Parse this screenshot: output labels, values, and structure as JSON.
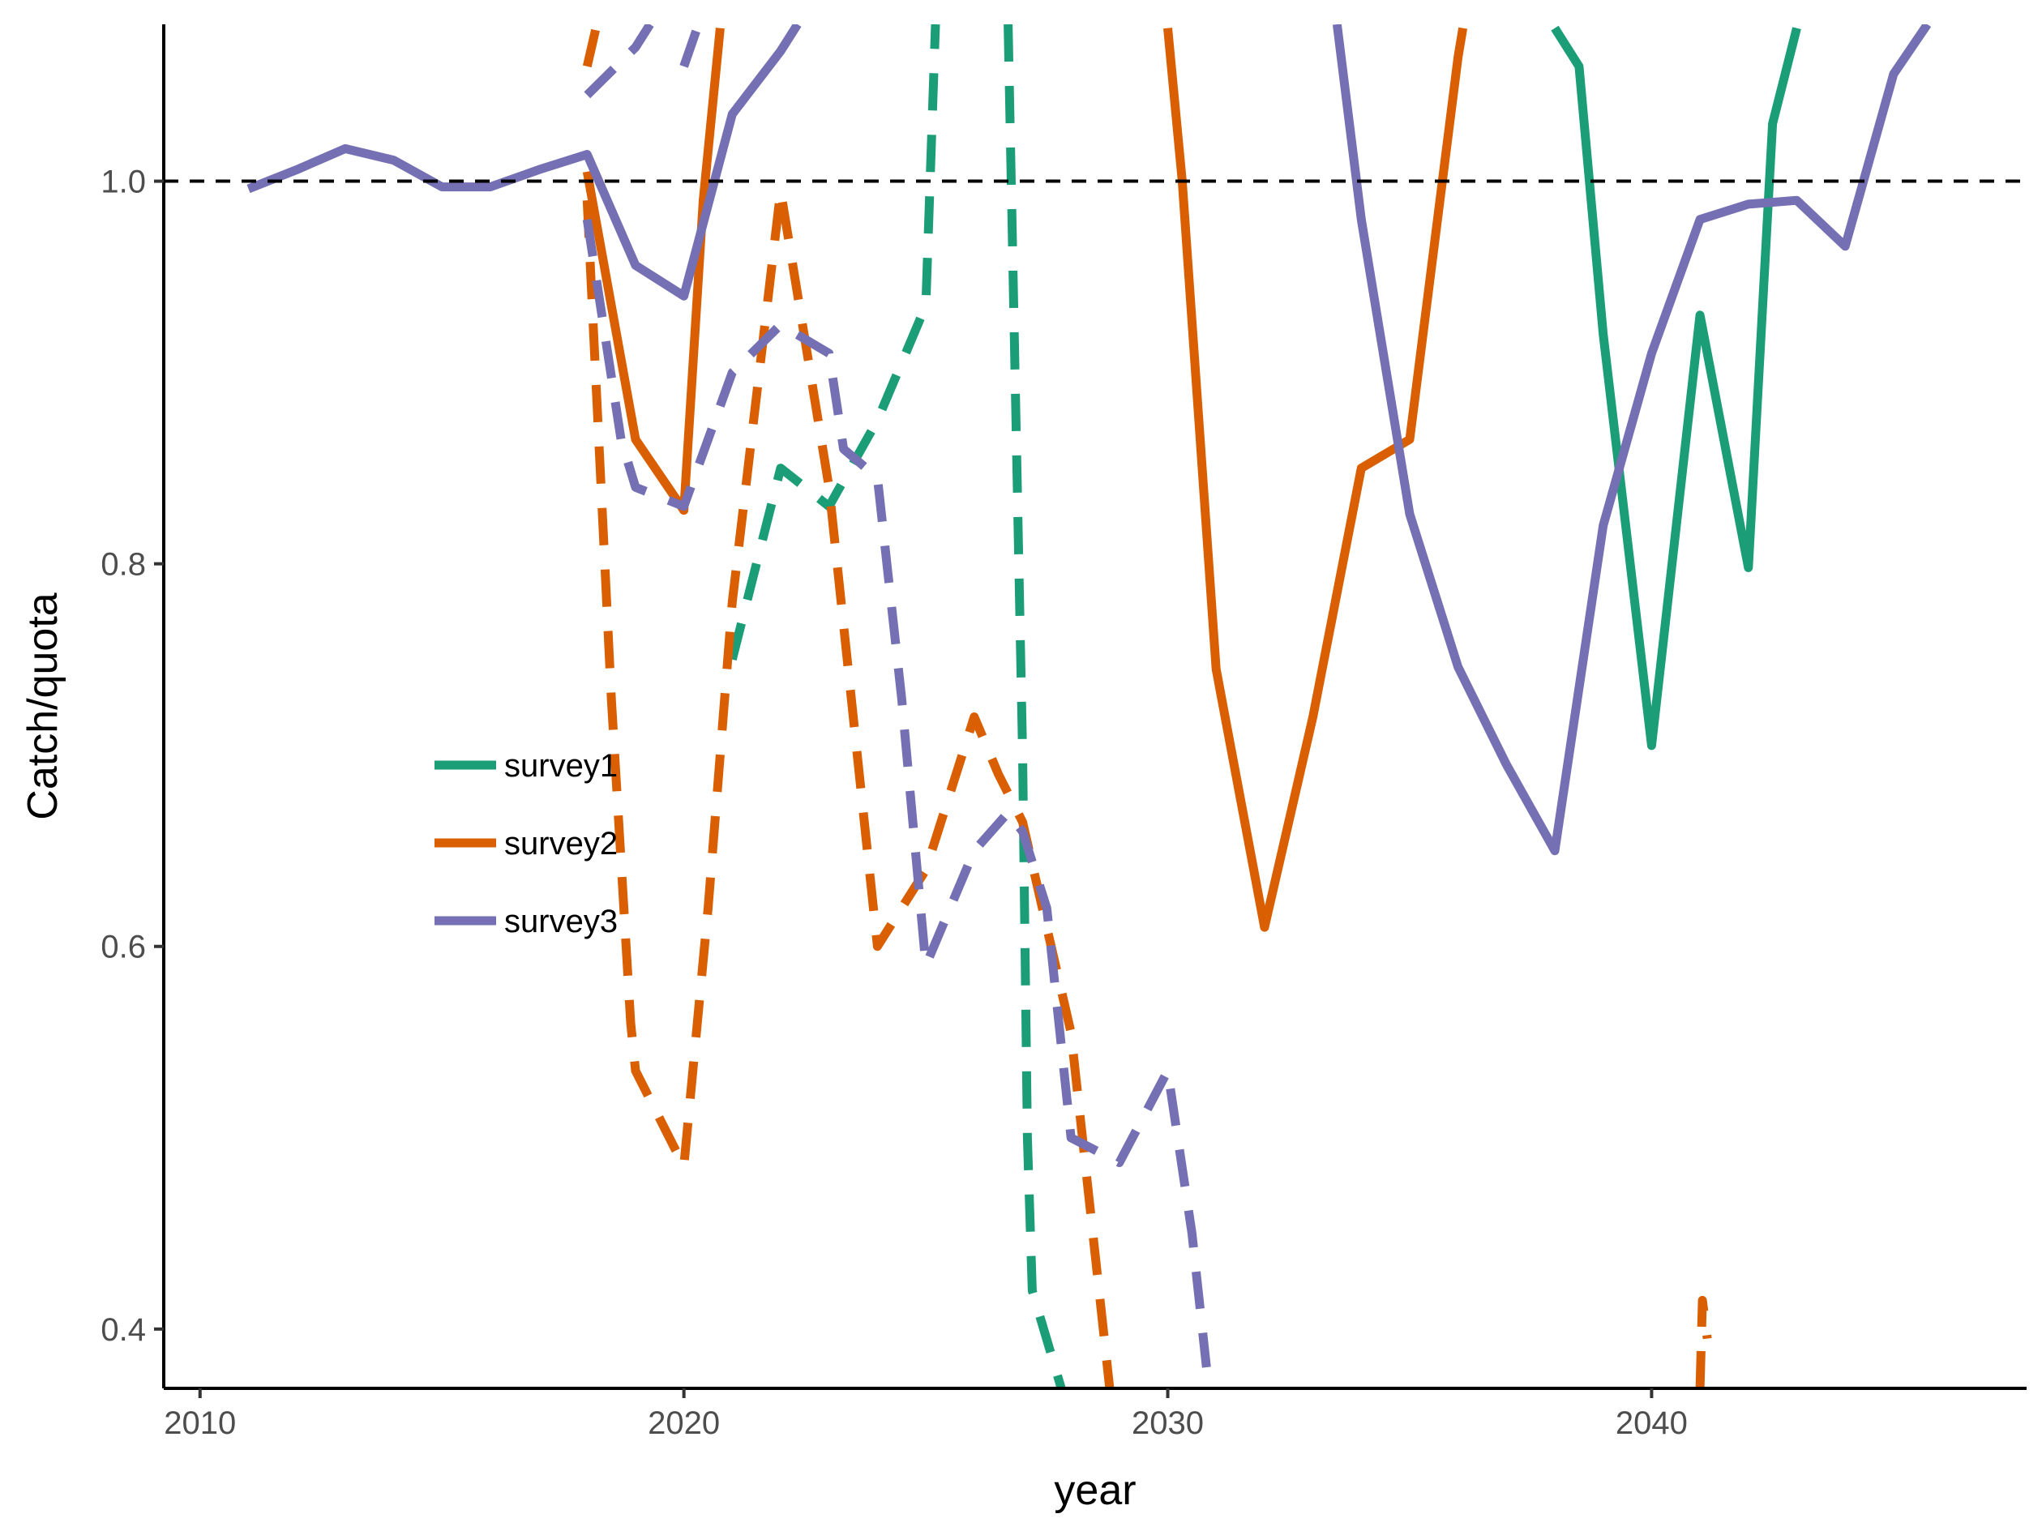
{
  "chart_data": {
    "type": "line",
    "title": "",
    "xlabel": "year",
    "ylabel": "Catch/quota",
    "xlim": [
      2009.25,
      2047.75
    ],
    "ylim": [
      0.369,
      1.082
    ],
    "x_ticks": [
      2010,
      2020,
      2030,
      2040
    ],
    "x_tick_labels": [
      "2010",
      "2020",
      "2030",
      "2040"
    ],
    "y_ticks": [
      0.4,
      0.6,
      0.8,
      1.0
    ],
    "y_tick_labels": [
      "0.4",
      "0.6",
      "0.8",
      "1.0"
    ],
    "reference_line": {
      "y": 1.0,
      "style": "dashed",
      "color": "#000000"
    },
    "grid": false,
    "legend_position": "left-middle",
    "legend": [
      {
        "name": "survey1",
        "color": "#1B9E77"
      },
      {
        "name": "survey2",
        "color": "#D95F02"
      },
      {
        "name": "survey3",
        "color": "#7570B3"
      }
    ],
    "series": [
      {
        "name": "survey1",
        "style": "solid",
        "color": "#1B9E77",
        "points": [
          [
            2038,
            1.08
          ],
          [
            2038.5,
            1.06
          ],
          [
            2039,
            0.92
          ],
          [
            2040,
            0.705
          ],
          [
            2041,
            0.93
          ],
          [
            2042,
            0.798
          ],
          [
            2042.5,
            1.03
          ],
          [
            2043,
            1.08
          ]
        ]
      },
      {
        "name": "survey2",
        "style": "solid",
        "color": "#D95F02",
        "points": [
          [
            2018,
            1.005
          ],
          [
            2019,
            0.865
          ],
          [
            2020,
            0.828
          ],
          [
            2020.4,
            0.99
          ],
          [
            2020.75,
            1.08
          ]
        ]
      },
      {
        "name": "survey2",
        "style": "solid",
        "color": "#D95F02",
        "points": [
          [
            2030,
            1.08
          ],
          [
            2030.3,
            1.0
          ],
          [
            2031,
            0.745
          ],
          [
            2032,
            0.61
          ],
          [
            2033,
            0.72
          ],
          [
            2034,
            0.85
          ],
          [
            2035,
            0.865
          ],
          [
            2036,
            1.065
          ],
          [
            2036.1,
            1.08
          ]
        ]
      },
      {
        "name": "survey3",
        "style": "solid",
        "color": "#7570B3",
        "points": [
          [
            2011,
            0.996
          ],
          [
            2012,
            1.006
          ],
          [
            2013,
            1.017
          ],
          [
            2014,
            1.011
          ],
          [
            2015,
            0.997
          ],
          [
            2016,
            0.997
          ],
          [
            2017,
            1.006
          ],
          [
            2018,
            1.014
          ],
          [
            2019,
            0.956
          ],
          [
            2020,
            0.94
          ],
          [
            2021,
            1.035
          ],
          [
            2022,
            1.068
          ],
          [
            2022.35,
            1.082
          ]
        ]
      },
      {
        "name": "survey3",
        "style": "solid",
        "color": "#7570B3",
        "points": [
          [
            2033.5,
            1.082
          ],
          [
            2034,
            0.98
          ],
          [
            2035,
            0.826
          ],
          [
            2036,
            0.746
          ],
          [
            2037,
            0.695
          ],
          [
            2038,
            0.65
          ],
          [
            2039,
            0.82
          ],
          [
            2040,
            0.91
          ],
          [
            2041,
            0.98
          ],
          [
            2042,
            0.988
          ],
          [
            2043,
            0.99
          ],
          [
            2044,
            0.966
          ],
          [
            2045,
            1.056
          ],
          [
            2045.7,
            1.082
          ]
        ]
      },
      {
        "name": "survey1",
        "style": "dashed",
        "color": "#1B9E77",
        "points": [
          [
            2021,
            0.75
          ],
          [
            2021.7,
            0.82
          ],
          [
            2022,
            0.85
          ],
          [
            2023,
            0.83
          ],
          [
            2024,
            0.875
          ],
          [
            2025,
            0.935
          ],
          [
            2025.2,
            1.082
          ]
        ]
      },
      {
        "name": "survey1",
        "style": "dashed",
        "color": "#1B9E77",
        "points": [
          [
            2026.7,
            1.082
          ],
          [
            2027,
            0.7
          ],
          [
            2027.1,
            0.5
          ],
          [
            2027.2,
            0.42
          ],
          [
            2027.8,
            0.369
          ]
        ]
      },
      {
        "name": "survey2",
        "style": "dashed",
        "color": "#D95F02",
        "points": [
          [
            2018,
            1.06
          ],
          [
            2018.2,
            1.082
          ]
        ]
      },
      {
        "name": "survey2",
        "style": "dashed",
        "color": "#D95F02",
        "points": [
          [
            2018,
            0.99
          ],
          [
            2018.5,
            0.73
          ],
          [
            2018.9,
            0.56
          ],
          [
            2019,
            0.535
          ],
          [
            2020,
            0.485
          ],
          [
            2020.5,
            0.62
          ],
          [
            2021,
            0.78
          ],
          [
            2022,
            0.995
          ],
          [
            2023,
            0.84
          ],
          [
            2024,
            0.6
          ],
          [
            2025,
            0.64
          ],
          [
            2026,
            0.72
          ],
          [
            2026.5,
            0.69
          ],
          [
            2027,
            0.665
          ],
          [
            2027.5,
            0.61
          ],
          [
            2028,
            0.555
          ],
          [
            2028.8,
            0.369
          ]
        ]
      },
      {
        "name": "survey2",
        "style": "dashed",
        "color": "#D95F02",
        "points": [
          [
            2041,
            0.369
          ],
          [
            2041.05,
            0.415
          ],
          [
            2041.15,
            0.395
          ]
        ]
      },
      {
        "name": "survey3",
        "style": "dashed",
        "color": "#7570B3",
        "points": [
          [
            2018,
            1.045
          ],
          [
            2019,
            1.07
          ],
          [
            2019.3,
            1.082
          ]
        ]
      },
      {
        "name": "survey3",
        "style": "dashed",
        "color": "#7570B3",
        "points": [
          [
            2020,
            1.06
          ],
          [
            2020.3,
            1.082
          ]
        ]
      },
      {
        "name": "survey3",
        "style": "dashed",
        "color": "#7570B3",
        "points": [
          [
            2018,
            0.98
          ],
          [
            2018.7,
            0.865
          ],
          [
            2019,
            0.84
          ],
          [
            2020,
            0.83
          ],
          [
            2021,
            0.9
          ],
          [
            2022,
            0.925
          ],
          [
            2023,
            0.91
          ],
          [
            2023.3,
            0.86
          ],
          [
            2024,
            0.845
          ],
          [
            2024.5,
            0.73
          ],
          [
            2025,
            0.59
          ],
          [
            2026,
            0.65
          ],
          [
            2026.7,
            0.67
          ],
          [
            2027,
            0.66
          ],
          [
            2027.5,
            0.62
          ],
          [
            2028,
            0.5
          ],
          [
            2029,
            0.487
          ],
          [
            2030,
            0.535
          ],
          [
            2030.5,
            0.45
          ],
          [
            2030.8,
            0.38
          ]
        ]
      }
    ]
  }
}
